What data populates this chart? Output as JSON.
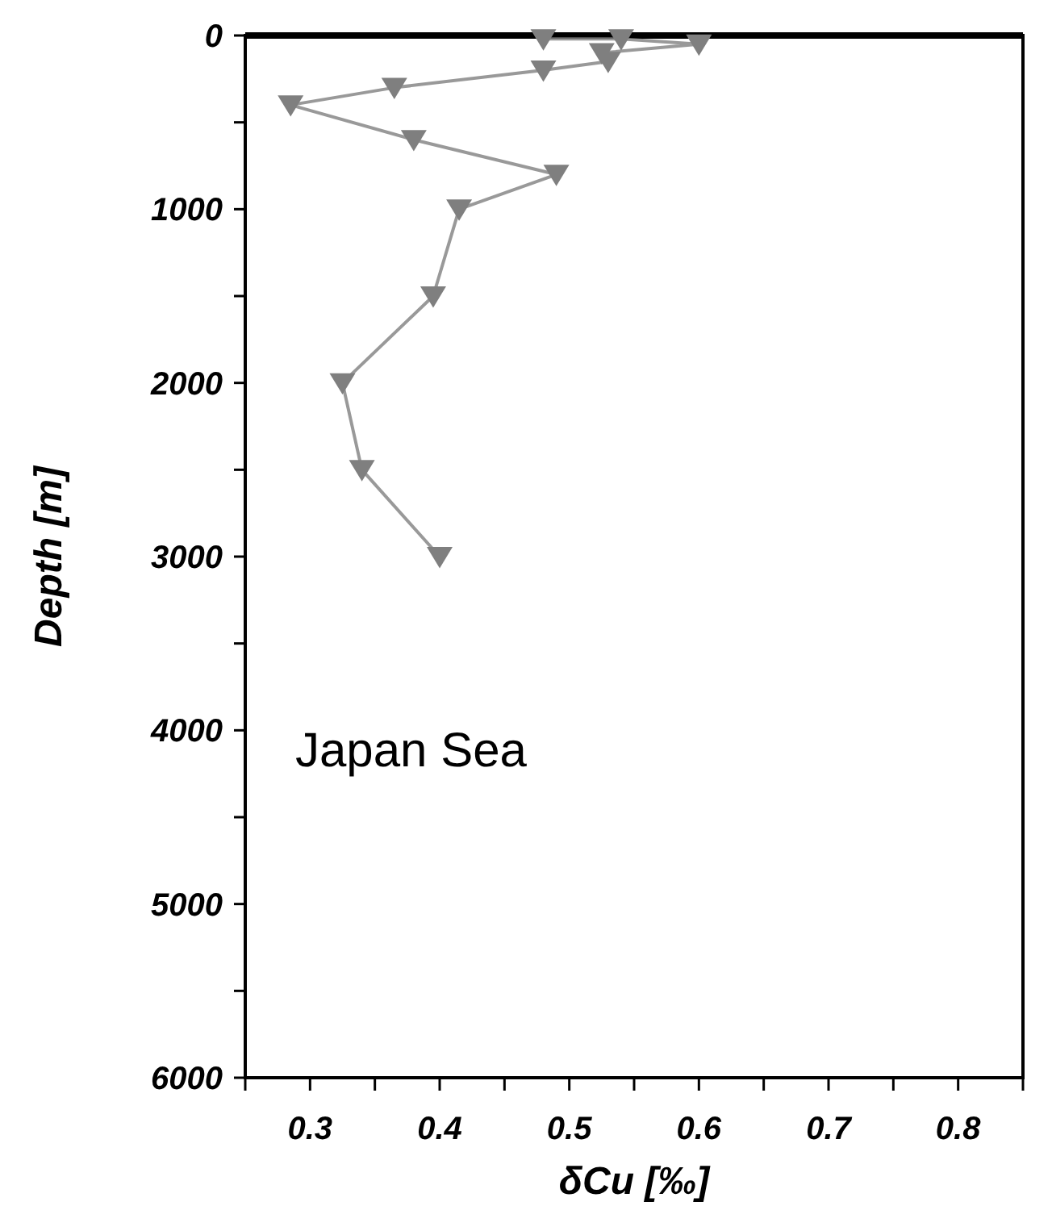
{
  "chart_data": {
    "type": "line",
    "xlabel": "δCu [‰]",
    "ylabel": "Depth [m]",
    "annotations": [
      "Japan Sea"
    ],
    "xlim": [
      0.25,
      0.85
    ],
    "ylim": [
      6000,
      0
    ],
    "xticks": [
      {
        "value": 0.25,
        "label": null
      },
      0.3,
      {
        "value": 0.35,
        "label": null
      },
      0.4,
      {
        "value": 0.45,
        "label": null
      },
      0.5,
      {
        "value": 0.55,
        "label": null
      },
      0.6,
      {
        "value": 0.65,
        "label": null
      },
      0.7,
      {
        "value": 0.75,
        "label": null
      },
      0.8,
      {
        "value": 0.85,
        "label": null
      }
    ],
    "yticks": [
      0,
      {
        "value": 500,
        "label": null
      },
      1000,
      {
        "value": 1500,
        "label": null
      },
      2000,
      {
        "value": 2500,
        "label": null
      },
      3000,
      {
        "value": 3500,
        "label": null
      },
      4000,
      {
        "value": 4500,
        "label": null
      },
      5000,
      {
        "value": 5500,
        "label": null
      },
      6000
    ],
    "marker": "triangle",
    "line_style": "solid",
    "series": [
      {
        "color": "#7f7f7f",
        "x": [
          0.48,
          0.54,
          0.6,
          0.525,
          0.53,
          0.48,
          0.365,
          0.285,
          0.38,
          0.49,
          0.415,
          0.395,
          0.325,
          0.34,
          0.4
        ],
        "values": [
          20,
          20,
          50,
          100,
          150,
          200,
          300,
          400,
          600,
          800,
          1000,
          1500,
          2000,
          2500,
          3000
        ]
      }
    ]
  }
}
